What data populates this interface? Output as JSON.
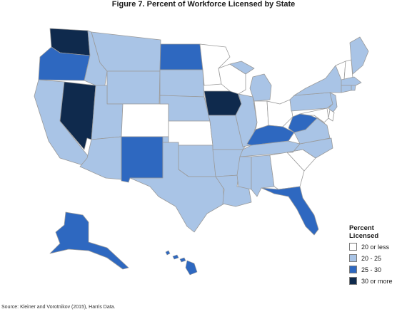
{
  "title": "Figure 7. Percent of Workforce Licensed by State",
  "legend": {
    "title": "Percent Licensed",
    "items": [
      {
        "label": "20 or less",
        "color": "#ffffff"
      },
      {
        "label": "20 - 25",
        "color": "#a9c4e6"
      },
      {
        "label": "25 - 30",
        "color": "#2e68c0"
      },
      {
        "label": "30 or more",
        "color": "#0f2a4d"
      }
    ]
  },
  "source": "Source: Kleiner and Vorotnikov (2015), Harris Data.",
  "states": {
    "WA": 3,
    "OR": 2,
    "CA": 1,
    "NV": 3,
    "ID": 1,
    "MT": 1,
    "WY": 1,
    "UT": 1,
    "AZ": 1,
    "CO": 0,
    "NM": 2,
    "ND": 2,
    "SD": 1,
    "NE": 1,
    "KS": 0,
    "OK": 1,
    "TX": 1,
    "MN": 0,
    "IA": 3,
    "MO": 1,
    "AR": 1,
    "LA": 1,
    "WI": 0,
    "IL": 1,
    "MI": 1,
    "IN": 0,
    "OH": 0,
    "KY": 2,
    "TN": 1,
    "MS": 1,
    "AL": 1,
    "GA": 0,
    "FL": 2,
    "SC": 0,
    "NC": 1,
    "VA": 1,
    "WV": 2,
    "PA": 1,
    "NY": 1,
    "VT": 0,
    "NH": 0,
    "ME": 1,
    "MA": 1,
    "CT": 1,
    "NJ": 1,
    "DE": 0,
    "MD": 0,
    "RI": 1,
    "AK": 2,
    "HI": 2
  }
}
